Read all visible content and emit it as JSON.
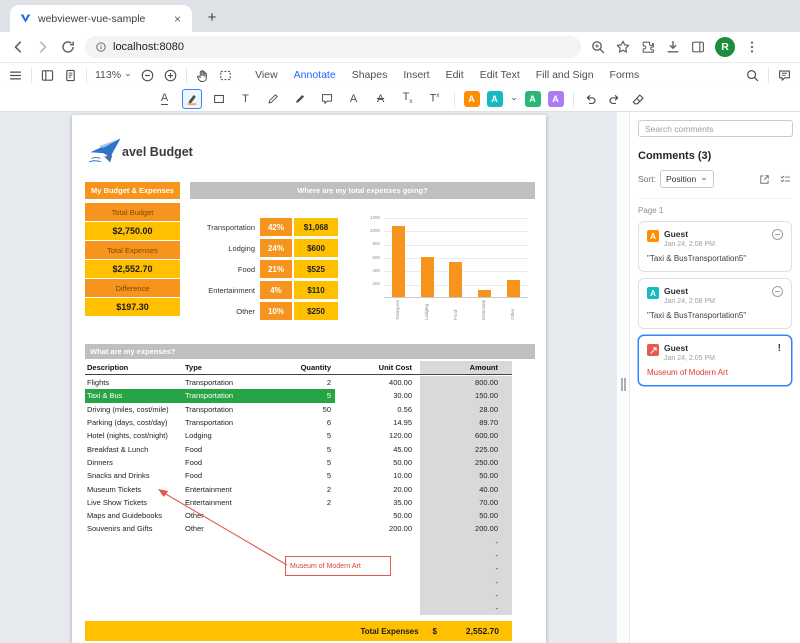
{
  "browser": {
    "tab_title": "webviewer-vue-sample",
    "url": "localhost:8080",
    "avatar_initial": "R"
  },
  "viewer": {
    "zoom_level": "113%",
    "ribbons": [
      "View",
      "Annotate",
      "Shapes",
      "Insert",
      "Edit",
      "Edit Text",
      "Fill and Sign",
      "Forms"
    ],
    "active_ribbon": "Annotate",
    "tools": [
      "underline-tool",
      "highlight-tool",
      "rectangle-tool",
      "freetext-tool",
      "pen-tool",
      "marker-tool",
      "note-tool",
      "font-tool",
      "strikeout-tool",
      "subscript-tool",
      "superscript-tool"
    ],
    "selected_tool": "highlight-tool",
    "presets": [
      {
        "name": "preset-orange",
        "color": "#FF8D00"
      },
      {
        "name": "preset-teal",
        "color": "#17BAC1",
        "dropdown": true
      },
      {
        "name": "preset-green",
        "color": "#2BB673"
      },
      {
        "name": "preset-purple",
        "color": "#A97CF4"
      }
    ]
  },
  "document": {
    "title": "avel Budget",
    "budget_header": "My Budget & Expenses",
    "expenses_question": "Where are my total expenses going?",
    "expenses_header": "What are my expenses?",
    "summary": [
      {
        "label": "Total Budget",
        "value": "$2,750.00"
      },
      {
        "label": "Total Expenses",
        "value": "$2,552.70"
      },
      {
        "label": "Difference",
        "value": "$197.30"
      }
    ],
    "categories": [
      {
        "name": "Transportation",
        "percent": "42%",
        "amount": "$1,068"
      },
      {
        "name": "Lodging",
        "percent": "24%",
        "amount": "$600"
      },
      {
        "name": "Food",
        "percent": "21%",
        "amount": "$525"
      },
      {
        "name": "Entertainment",
        "percent": "4%",
        "amount": "$110"
      },
      {
        "name": "Other",
        "percent": "10%",
        "amount": "$250"
      }
    ],
    "table": {
      "headers": [
        "Description",
        "Type",
        "Quantity",
        "Unit Cost",
        "Amount"
      ],
      "rows": [
        {
          "cells": [
            "Flights",
            "Transportation",
            "2",
            "400.00",
            "800.00"
          ]
        },
        {
          "cells": [
            "Taxi & Bus",
            "Transportation",
            "5",
            "30.00",
            "150.00"
          ],
          "highlighted": true
        },
        {
          "cells": [
            "Driving (miles, cost/mile)",
            "Transportation",
            "50",
            "0.56",
            "28.00"
          ]
        },
        {
          "cells": [
            "Parking (days, cost/day)",
            "Transportation",
            "6",
            "14.95",
            "89.70"
          ]
        },
        {
          "cells": [
            "Hotel (nights, cost/night)",
            "Lodging",
            "5",
            "120.00",
            "600.00"
          ]
        },
        {
          "cells": [
            "Breakfast & Lunch",
            "Food",
            "5",
            "45.00",
            "225.00"
          ]
        },
        {
          "cells": [
            "Dinners",
            "Food",
            "5",
            "50.00",
            "250.00"
          ]
        },
        {
          "cells": [
            "Snacks and Drinks",
            "Food",
            "5",
            "10.00",
            "50.00"
          ]
        },
        {
          "cells": [
            "Museum Tickets",
            "Entertainment",
            "2",
            "20.00",
            "40.00"
          ]
        },
        {
          "cells": [
            "Live Show Tickets",
            "Entertainment",
            "2",
            "35.00",
            "70.00"
          ]
        },
        {
          "cells": [
            "Maps and Guidebooks",
            "Other",
            "",
            "50.00",
            "50.00"
          ]
        },
        {
          "cells": [
            "Souvenirs and Gifts",
            "Other",
            "",
            "200.00",
            "200.00"
          ]
        }
      ],
      "empty_row_amount": "-",
      "empty_row_count": 6
    },
    "total_row": {
      "label": "Total Expenses",
      "currency": "$",
      "value": "2,552.70"
    },
    "callout_text": "Museum of Modern Art",
    "callout_color": "#E05A4E",
    "callout_text_color": "#E03C31",
    "accent_orange": "#F7941E",
    "accent_yellow": "#FFC000",
    "highlight_green": "#27A445"
  },
  "chart_data": {
    "type": "bar",
    "categories": [
      "Transportation",
      "Lodging",
      "Food",
      "Entertainment",
      "Other"
    ],
    "values": [
      1068,
      600,
      525,
      110,
      250
    ],
    "title": "",
    "xlabel": "",
    "ylabel": "",
    "ylim": [
      0,
      1200
    ],
    "yticks": [
      200,
      400,
      600,
      800,
      1000,
      1200
    ],
    "bar_color": "#F7941E",
    "grid": true,
    "legend": false
  },
  "comments": {
    "search_placeholder": "Search comments",
    "title": "Comments (3)",
    "sort_label": "Sort:",
    "sort_value": "Position",
    "page_label": "Page 1",
    "items": [
      {
        "author": "Guest",
        "time": "Jan 24, 2:08 PM",
        "text": "\"Taxi & BusTransportation5\"",
        "icon": "highlight-annotation-icon",
        "color": "#FF8D00",
        "status": "minus"
      },
      {
        "author": "Guest",
        "time": "Jan 24, 2:08 PM",
        "text": "\"Taxi & BusTransportation5\"",
        "icon": "highlight-annotation-icon",
        "color": "#17BAC1",
        "status": "minus"
      },
      {
        "author": "Guest",
        "time": "Jan 24, 2:05 PM",
        "text": "Museum of Modern Art",
        "icon": "callout-annotation-icon",
        "color": "#E8584F",
        "status": "exclaim",
        "selected": true,
        "text_color": "#E03C31"
      }
    ]
  },
  "icons": [
    "favicon",
    "back",
    "forward",
    "reload",
    "site-info",
    "zoom",
    "bookmark-star",
    "extensions",
    "download",
    "side-panel",
    "profile-avatar",
    "browser-menu",
    "main-menu",
    "left-panel-toggle",
    "view-controls",
    "chevron-down",
    "zoom-out",
    "zoom-in",
    "pan-hand",
    "marquee-select",
    "search",
    "comments-toggle",
    "undo",
    "redo",
    "eraser",
    "export-comments",
    "multi-select",
    "comment-state-minus",
    "comment-status-exclaim",
    "travel-logo-plane",
    "callout-arrow"
  ]
}
